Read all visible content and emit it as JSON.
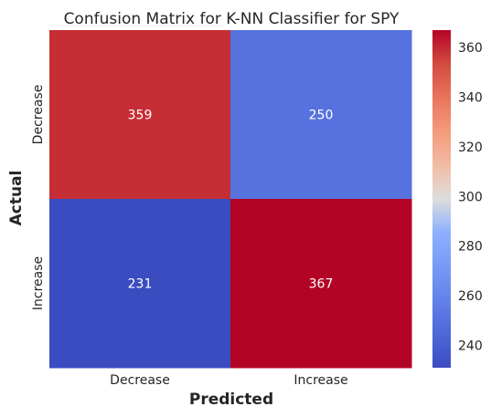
{
  "chart_data": {
    "type": "heatmap",
    "title": "Confusion Matrix for K-NN Classifier for SPY",
    "xlabel": "Predicted",
    "ylabel": "Actual",
    "x_categories": [
      "Decrease",
      "Increase"
    ],
    "y_categories": [
      "Decrease",
      "Increase"
    ],
    "values": [
      [
        359,
        250
      ],
      [
        231,
        367
      ]
    ],
    "colormap": "coolwarm",
    "colorbar": {
      "ticks": [
        240,
        260,
        280,
        300,
        320,
        340,
        360
      ],
      "range": [
        231,
        367
      ]
    },
    "grid": false
  }
}
